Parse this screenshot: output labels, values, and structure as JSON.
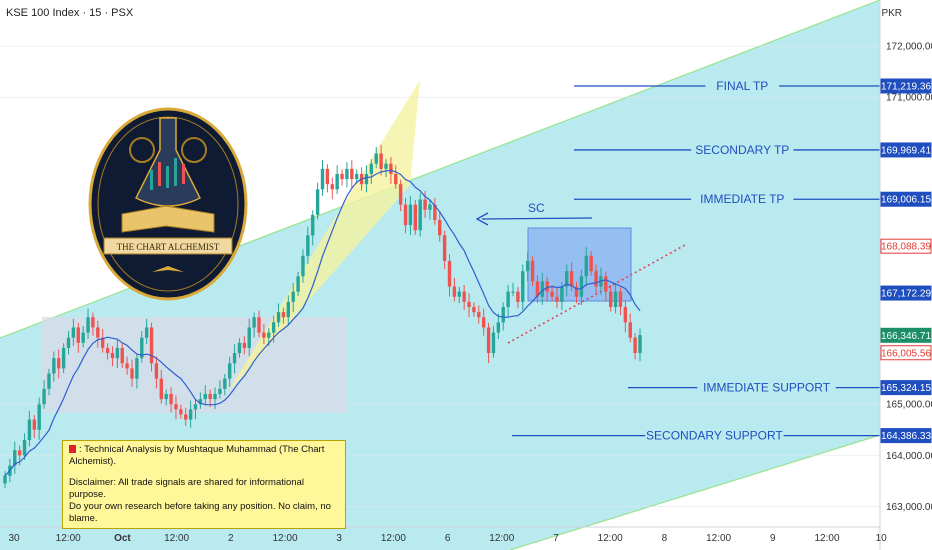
{
  "header": {
    "symbol": "KSE 100 Index · 15 · PSX",
    "currency": "PKR"
  },
  "colors": {
    "channel_fill": "#b9eaf0",
    "channel_line": "#98e38e",
    "up_candle": "#26a69a",
    "down_candle": "#ef5350",
    "moving_average": "#2f5fd0",
    "level_line": "#1f4fbf",
    "price_badge": "#1f4fbf",
    "last_price_badge": "#1c8f66",
    "bid_badge": "#e53935",
    "range_box": "#d8dbe8",
    "rising_wedge": "#f5f2a0",
    "distribution_box": "#8fb8f0"
  },
  "logo": {
    "text": "THE CHART ALCHEMIST"
  },
  "note": {
    "title": ": Technical Analysis by Mushtaque Muhammad (The Chart Alchemist).",
    "line1": "Disclaimer: All trade signals are shared for informational purpose.",
    "line2": "Do your own research before taking any position. No claim, no blame."
  },
  "chart_data": {
    "type": "candlestick",
    "title": "KSE 100 Index · 15 · PSX",
    "ylabel": "PKR",
    "ylim": [
      162600,
      172900
    ],
    "x_tick_labels": [
      "30",
      "12:00",
      "Oct",
      "12:00",
      "2",
      "12:00",
      "3",
      "12:00",
      "6",
      "12:00",
      "7",
      "12:00",
      "8",
      "12:00",
      "9",
      "12:00",
      "10"
    ],
    "y_tick_labels": [
      "172,000.00",
      "171,000.00",
      "165,000.00",
      "164,000.00",
      "163,000.00"
    ],
    "y_ticks": [
      172000,
      171000,
      165000,
      164000,
      163000
    ],
    "grid": true,
    "price_badges": [
      {
        "label": "171,219.36",
        "value": 171219.36,
        "kind": "level"
      },
      {
        "label": "169,969.41",
        "value": 169969.41,
        "kind": "level"
      },
      {
        "label": "169,006.15",
        "value": 169006.15,
        "kind": "level"
      },
      {
        "label": "168,088.39",
        "value": 168088.39,
        "kind": "bid"
      },
      {
        "label": "167,172.29",
        "value": 167172.29,
        "kind": "level"
      },
      {
        "label": "166,346.71",
        "value": 166346.71,
        "kind": "last"
      },
      {
        "label": "166,005.56",
        "value": 166005.56,
        "kind": "bid"
      },
      {
        "label": "165,324.15",
        "value": 165324.15,
        "kind": "level"
      },
      {
        "label": "164,386.33",
        "value": 164386.33,
        "kind": "level"
      }
    ],
    "levels": [
      {
        "label": "FINAL TP",
        "value": 171219.36
      },
      {
        "label": "SECONDARY TP",
        "value": 169969.41
      },
      {
        "label": "IMMEDIATE TP",
        "value": 169006.15
      },
      {
        "label": "IMMEDIATE SUPPORT",
        "value": 165324.15
      },
      {
        "label": "SECONDARY SUPPORT",
        "value": 164386.33
      }
    ],
    "annotations": [
      {
        "label": "SC",
        "value": 169000
      }
    ],
    "closes": [
      163600,
      163800,
      164100,
      164000,
      164300,
      164700,
      164500,
      165000,
      165300,
      165600,
      165900,
      165700,
      166100,
      166300,
      166500,
      166200,
      166400,
      166700,
      166500,
      166300,
      166100,
      166000,
      165900,
      166100,
      165800,
      165700,
      165500,
      165900,
      166300,
      166500,
      165800,
      165500,
      165100,
      165200,
      165000,
      164900,
      164800,
      164700,
      164900,
      165000,
      165100,
      165200,
      165100,
      165200,
      165300,
      165500,
      165800,
      166000,
      166200,
      166100,
      166500,
      166700,
      166400,
      166300,
      166400,
      166600,
      166800,
      166700,
      167000,
      167200,
      167500,
      167900,
      168300,
      168700,
      169200,
      169600,
      169300,
      169200,
      169500,
      169400,
      169600,
      169400,
      169500,
      169300,
      169500,
      169700,
      169900,
      169600,
      169700,
      169500,
      169300,
      168900,
      168500,
      168900,
      168400,
      169000,
      168800,
      168900,
      168600,
      168300,
      167800,
      167300,
      167100,
      167200,
      167000,
      166900,
      166800,
      166700,
      166500,
      166000,
      166400,
      166600,
      166900,
      167200,
      167200,
      167000,
      167600,
      167800,
      167400,
      167100,
      167400,
      167200,
      167100,
      167000,
      167300,
      167600,
      167300,
      167100,
      167500,
      167900,
      167600,
      167300,
      167500,
      167200,
      166900,
      167200,
      166900,
      166600,
      166300,
      166000,
      166350
    ]
  }
}
